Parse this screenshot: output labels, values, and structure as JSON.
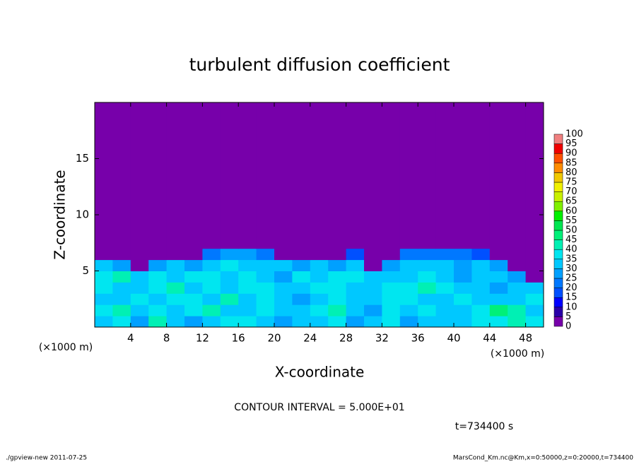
{
  "chart_data": {
    "type": "heatmap",
    "title": "turbulent diffusion coefficient",
    "x_label": "X-coordinate",
    "y_label": "Z-coordinate",
    "x_unit": "(×1000 m)",
    "y_unit": "(×1000 m)",
    "xlim": [
      0,
      50
    ],
    "ylim": [
      0,
      20
    ],
    "xticks": [
      4,
      8,
      12,
      16,
      20,
      24,
      28,
      32,
      36,
      40,
      44,
      48
    ],
    "yticks": [
      5,
      10,
      15
    ],
    "xbins": [
      0,
      2,
      4,
      6,
      8,
      10,
      12,
      14,
      16,
      18,
      20,
      22,
      24,
      26,
      28,
      30,
      32,
      34,
      36,
      38,
      40,
      42,
      44,
      46,
      48,
      50
    ],
    "ybins": [
      0,
      1,
      2,
      3,
      4,
      5,
      6,
      7,
      8,
      20
    ],
    "values": [
      [
        30,
        35,
        28,
        40,
        32,
        28,
        30,
        35,
        38,
        30,
        28,
        33,
        30,
        35,
        25,
        30,
        38,
        28,
        32,
        30,
        30,
        35,
        38,
        40,
        35
      ],
      [
        35,
        40,
        30,
        38,
        30,
        35,
        40,
        30,
        33,
        38,
        30,
        30,
        35,
        40,
        30,
        28,
        35,
        30,
        35,
        30,
        30,
        38,
        45,
        40,
        33
      ],
      [
        33,
        30,
        35,
        30,
        35,
        38,
        30,
        40,
        30,
        35,
        32,
        28,
        30,
        35,
        33,
        30,
        38,
        35,
        30,
        32,
        35,
        30,
        30,
        33,
        35
      ],
      [
        38,
        32,
        30,
        35,
        40,
        33,
        35,
        30,
        35,
        38,
        30,
        33,
        38,
        35,
        30,
        30,
        35,
        38,
        40,
        35,
        33,
        30,
        28,
        30,
        30
      ],
      [
        35,
        40,
        30,
        35,
        32,
        35,
        38,
        30,
        35,
        30,
        28,
        35,
        30,
        35,
        38,
        30,
        30,
        33,
        35,
        30,
        28,
        32,
        30,
        25,
        2
      ],
      [
        30,
        25,
        2,
        28,
        30,
        28,
        30,
        35,
        32,
        30,
        30,
        28,
        30,
        28,
        33,
        2,
        28,
        30,
        33,
        30,
        28,
        30,
        25,
        2,
        2
      ],
      [
        2,
        2,
        2,
        2,
        2,
        2,
        20,
        28,
        25,
        20,
        2,
        2,
        2,
        2,
        18,
        2,
        2,
        20,
        20,
        20,
        20,
        18,
        2,
        2,
        2
      ],
      [
        2,
        2,
        2,
        2,
        2,
        2,
        2,
        2,
        2,
        2,
        2,
        2,
        2,
        2,
        2,
        2,
        2,
        2,
        2,
        2,
        2,
        2,
        2,
        2,
        2
      ],
      [
        2,
        2,
        2,
        2,
        2,
        2,
        2,
        2,
        2,
        2,
        2,
        2,
        2,
        2,
        2,
        2,
        2,
        2,
        2,
        2,
        2,
        2,
        2,
        2,
        2
      ]
    ],
    "levels": [
      0,
      5,
      10,
      15,
      20,
      25,
      30,
      35,
      40,
      45,
      50,
      55,
      60,
      65,
      70,
      75,
      80,
      85,
      90,
      95,
      100
    ],
    "colors": [
      "#7700aa",
      "#2a00a8",
      "#0000ff",
      "#0050ff",
      "#0078ff",
      "#00a0ff",
      "#00c8ff",
      "#00e6f0",
      "#00f0b4",
      "#00f078",
      "#00e650",
      "#00f000",
      "#80f000",
      "#c8f000",
      "#f0f000",
      "#f0c800",
      "#ff8c00",
      "#ff5000",
      "#f00000",
      "#f08080"
    ],
    "annotation": "CONTOUR INTERVAL = 5.000E+01",
    "time_label": "t=734400 s",
    "footer_left": "./gpview-new  2011-07-25",
    "footer_right": "MarsCond_Km.nc@Km,x=0:50000,z=0:20000,t=734400"
  }
}
